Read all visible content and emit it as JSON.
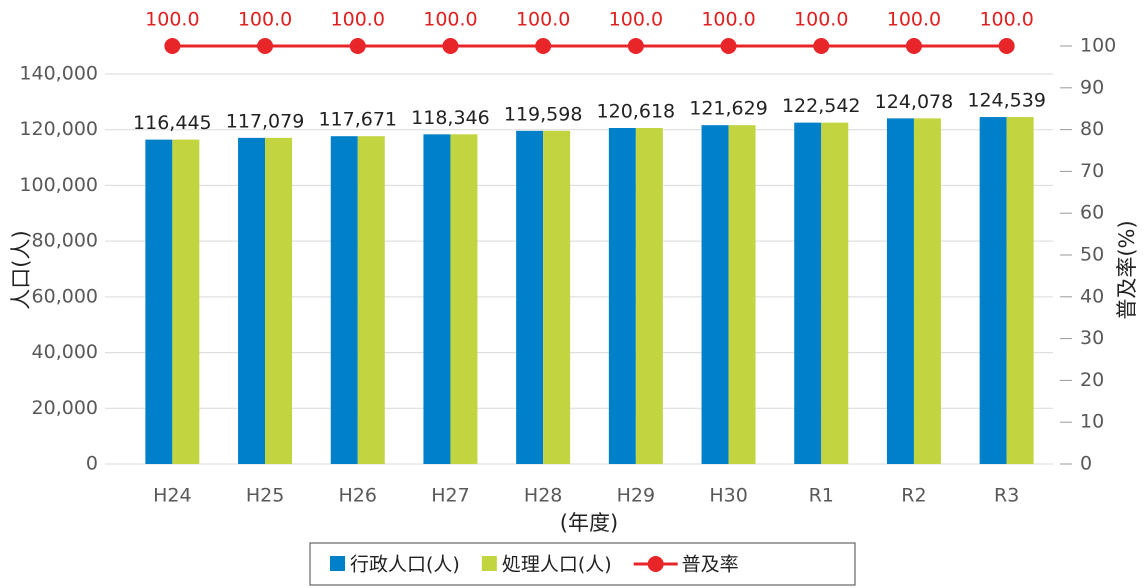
{
  "chart_data": {
    "type": "bar",
    "categories": [
      "H24",
      "H25",
      "H26",
      "H27",
      "H28",
      "H29",
      "H30",
      "R1",
      "R2",
      "R3"
    ],
    "series": [
      {
        "name": "行政人口(人)",
        "color": "#0080c8",
        "values": [
          116445,
          117079,
          117671,
          118346,
          119598,
          120618,
          121629,
          122542,
          124078,
          124539
        ],
        "value_labels": [
          "116,445",
          "117,079",
          "117,671",
          "118,346",
          "119,598",
          "120,618",
          "121,629",
          "122,542",
          "124,078",
          "124,539"
        ]
      },
      {
        "name": "処理人口(人)",
        "color": "#c2d43f",
        "values": [
          116445,
          117079,
          117671,
          118346,
          119598,
          120618,
          121629,
          122542,
          124078,
          124539
        ]
      },
      {
        "name": "普及率",
        "type": "line",
        "axis": "y2",
        "color": "#e8262a",
        "values": [
          100,
          100,
          100,
          100,
          100,
          100,
          100,
          100,
          100,
          100
        ],
        "value_labels": [
          "100.0",
          "100.0",
          "100.0",
          "100.0",
          "100.0",
          "100.0",
          "100.0",
          "100.0",
          "100.0",
          "100.0"
        ]
      }
    ],
    "ylabel": "人口(人)",
    "y2label": "普及率(%)",
    "xlabel": "(年度)",
    "ylim": [
      0,
      140000
    ],
    "yticks": [
      0,
      {
        "value": 20000,
        "label": "20,000"
      },
      {
        "value": 40000,
        "label": "40,000"
      },
      {
        "value": 60000,
        "label": "60,000"
      },
      {
        "value": 80000,
        "label": "80,000"
      },
      {
        "value": 100000,
        "label": "100,000"
      },
      {
        "value": 120000,
        "label": "120,000"
      },
      {
        "value": 140000,
        "label": "140,000"
      }
    ],
    "y2lim": [
      0,
      100
    ],
    "y2ticks": [
      0,
      10,
      20,
      30,
      40,
      50,
      60,
      70,
      80,
      90,
      100
    ],
    "grid": true,
    "legend": "bottom"
  }
}
